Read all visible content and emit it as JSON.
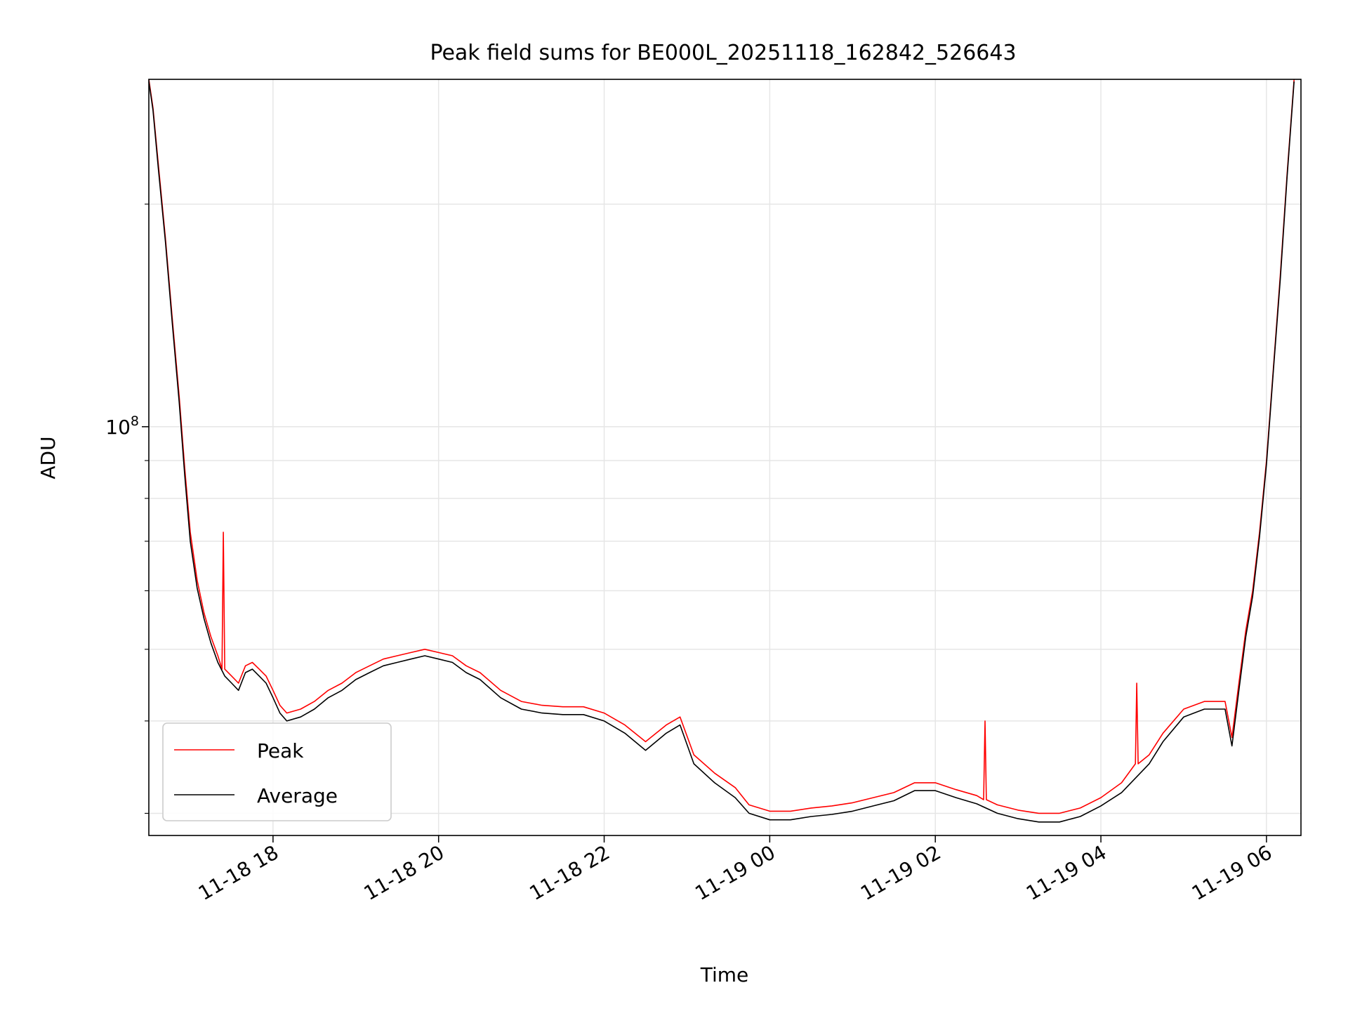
{
  "chart_data": {
    "type": "line",
    "title": "Peak field sums for BE000L_20251118_162842_526643",
    "xlabel": "Time",
    "ylabel": "ADU",
    "yscale": "log",
    "ylim": [
      28000000,
      295000000
    ],
    "xlim": [
      "2025-11-18 16:30",
      "2025-11-19 06:25"
    ],
    "x_ticks": [
      "11-18 18",
      "11-18 20",
      "11-18 22",
      "11-19 00",
      "11-19 02",
      "11-19 04",
      "11-19 06"
    ],
    "y_tick_labels": [
      {
        "base": "10",
        "exponent": "8"
      }
    ],
    "grid": true,
    "legend_position": "lower-left",
    "colors": {
      "peak": "#ff0000",
      "average": "#000000"
    },
    "series": [
      {
        "name": "Peak",
        "x": [
          "2025-11-18 16:30",
          "2025-11-18 16:33",
          "2025-11-18 16:37",
          "2025-11-18 16:42",
          "2025-11-18 16:47",
          "2025-11-18 16:52",
          "2025-11-18 16:56",
          "2025-11-18 17:00",
          "2025-11-18 17:05",
          "2025-11-18 17:10",
          "2025-11-18 17:15",
          "2025-11-18 17:20",
          "2025-11-18 17:23",
          "2025-11-18 17:24",
          "2025-11-18 17:25",
          "2025-11-18 17:30",
          "2025-11-18 17:35",
          "2025-11-18 17:40",
          "2025-11-18 17:45",
          "2025-11-18 17:50",
          "2025-11-18 17:55",
          "2025-11-18 18:00",
          "2025-11-18 18:05",
          "2025-11-18 18:10",
          "2025-11-18 18:20",
          "2025-11-18 18:30",
          "2025-11-18 18:40",
          "2025-11-18 18:50",
          "2025-11-18 19:00",
          "2025-11-18 19:10",
          "2025-11-18 19:20",
          "2025-11-18 19:30",
          "2025-11-18 19:40",
          "2025-11-18 19:50",
          "2025-11-18 20:00",
          "2025-11-18 20:10",
          "2025-11-18 20:20",
          "2025-11-18 20:30",
          "2025-11-18 20:45",
          "2025-11-18 21:00",
          "2025-11-18 21:15",
          "2025-11-18 21:30",
          "2025-11-18 21:45",
          "2025-11-18 22:00",
          "2025-11-18 22:15",
          "2025-11-18 22:30",
          "2025-11-18 22:45",
          "2025-11-18 22:55",
          "2025-11-18 23:05",
          "2025-11-18 23:20",
          "2025-11-18 23:35",
          "2025-11-18 23:45",
          "2025-11-19 00:00",
          "2025-11-19 00:15",
          "2025-11-19 00:30",
          "2025-11-19 00:45",
          "2025-11-19 01:00",
          "2025-11-19 01:15",
          "2025-11-19 01:30",
          "2025-11-19 01:45",
          "2025-11-19 02:00",
          "2025-11-19 02:15",
          "2025-11-19 02:30",
          "2025-11-19 02:35",
          "2025-11-19 02:36",
          "2025-11-19 02:37",
          "2025-11-19 02:45",
          "2025-11-19 03:00",
          "2025-11-19 03:15",
          "2025-11-19 03:30",
          "2025-11-19 03:45",
          "2025-11-19 04:00",
          "2025-11-19 04:15",
          "2025-11-19 04:25",
          "2025-11-19 04:26",
          "2025-11-19 04:27",
          "2025-11-19 04:35",
          "2025-11-19 04:45",
          "2025-11-19 05:00",
          "2025-11-19 05:15",
          "2025-11-19 05:30",
          "2025-11-19 05:35",
          "2025-11-19 05:40",
          "2025-11-19 05:45",
          "2025-11-19 05:50",
          "2025-11-19 05:55",
          "2025-11-19 06:00",
          "2025-11-19 06:05",
          "2025-11-19 06:10",
          "2025-11-19 06:15",
          "2025-11-19 06:20"
        ],
        "values": [
          295000000,
          270000000,
          225000000,
          180000000,
          140000000,
          110000000,
          88000000,
          72000000,
          62000000,
          56000000,
          52000000,
          49000000,
          47000000,
          72000000,
          47000000,
          46000000,
          45000000,
          47500000,
          48000000,
          47000000,
          46000000,
          44000000,
          42000000,
          41000000,
          41500000,
          42500000,
          44000000,
          45000000,
          46500000,
          47500000,
          48500000,
          49000000,
          49500000,
          50000000,
          49500000,
          49000000,
          47500000,
          46500000,
          44000000,
          42500000,
          42000000,
          41800000,
          41800000,
          41000000,
          39500000,
          37500000,
          39500000,
          40500000,
          36000000,
          34000000,
          32500000,
          30800000,
          30200000,
          30200000,
          30500000,
          30700000,
          31000000,
          31500000,
          32000000,
          33000000,
          33000000,
          32300000,
          31700000,
          31300000,
          40000000,
          31300000,
          30800000,
          30300000,
          30000000,
          30000000,
          30500000,
          31500000,
          33000000,
          35000000,
          45000000,
          35000000,
          36000000,
          38500000,
          41500000,
          42500000,
          42500000,
          38000000,
          45000000,
          53000000,
          60000000,
          72000000,
          90000000,
          120000000,
          160000000,
          220000000,
          295000000
        ]
      },
      {
        "name": "Average",
        "x": [
          "2025-11-18 16:30",
          "2025-11-18 16:33",
          "2025-11-18 16:37",
          "2025-11-18 16:42",
          "2025-11-18 16:47",
          "2025-11-18 16:52",
          "2025-11-18 16:56",
          "2025-11-18 17:00",
          "2025-11-18 17:05",
          "2025-11-18 17:10",
          "2025-11-18 17:15",
          "2025-11-18 17:20",
          "2025-11-18 17:25",
          "2025-11-18 17:30",
          "2025-11-18 17:35",
          "2025-11-18 17:40",
          "2025-11-18 17:45",
          "2025-11-18 17:50",
          "2025-11-18 17:55",
          "2025-11-18 18:00",
          "2025-11-18 18:05",
          "2025-11-18 18:10",
          "2025-11-18 18:20",
          "2025-11-18 18:30",
          "2025-11-18 18:40",
          "2025-11-18 18:50",
          "2025-11-18 19:00",
          "2025-11-18 19:10",
          "2025-11-18 19:20",
          "2025-11-18 19:30",
          "2025-11-18 19:40",
          "2025-11-18 19:50",
          "2025-11-18 20:00",
          "2025-11-18 20:10",
          "2025-11-18 20:20",
          "2025-11-18 20:30",
          "2025-11-18 20:45",
          "2025-11-18 21:00",
          "2025-11-18 21:15",
          "2025-11-18 21:30",
          "2025-11-18 21:45",
          "2025-11-18 22:00",
          "2025-11-18 22:15",
          "2025-11-18 22:30",
          "2025-11-18 22:45",
          "2025-11-18 22:55",
          "2025-11-18 23:05",
          "2025-11-18 23:20",
          "2025-11-18 23:35",
          "2025-11-18 23:45",
          "2025-11-19 00:00",
          "2025-11-19 00:15",
          "2025-11-19 00:30",
          "2025-11-19 00:45",
          "2025-11-19 01:00",
          "2025-11-19 01:15",
          "2025-11-19 01:30",
          "2025-11-19 01:45",
          "2025-11-19 02:00",
          "2025-11-19 02:15",
          "2025-11-19 02:30",
          "2025-11-19 02:45",
          "2025-11-19 03:00",
          "2025-11-19 03:15",
          "2025-11-19 03:30",
          "2025-11-19 03:45",
          "2025-11-19 04:00",
          "2025-11-19 04:15",
          "2025-11-19 04:35",
          "2025-11-19 04:45",
          "2025-11-19 05:00",
          "2025-11-19 05:15",
          "2025-11-19 05:30",
          "2025-11-19 05:35",
          "2025-11-19 05:40",
          "2025-11-19 05:45",
          "2025-11-19 05:50",
          "2025-11-19 05:55",
          "2025-11-19 06:00",
          "2025-11-19 06:05",
          "2025-11-19 06:10",
          "2025-11-19 06:15",
          "2025-11-19 06:20"
        ],
        "values": [
          293000000,
          268000000,
          222000000,
          178000000,
          138000000,
          108000000,
          86000000,
          70000000,
          60500000,
          55000000,
          51000000,
          48000000,
          46000000,
          45000000,
          44000000,
          46500000,
          47000000,
          46000000,
          45000000,
          43000000,
          41000000,
          40000000,
          40500000,
          41500000,
          43000000,
          44000000,
          45500000,
          46500000,
          47500000,
          48000000,
          48500000,
          49000000,
          48500000,
          48000000,
          46500000,
          45500000,
          43000000,
          41500000,
          41000000,
          40800000,
          40800000,
          40000000,
          38500000,
          36500000,
          38500000,
          39500000,
          35000000,
          33000000,
          31500000,
          30000000,
          29400000,
          29400000,
          29700000,
          29900000,
          30200000,
          30700000,
          31200000,
          32200000,
          32200000,
          31500000,
          30900000,
          30000000,
          29500000,
          29200000,
          29200000,
          29700000,
          30700000,
          32000000,
          35000000,
          37500000,
          40500000,
          41500000,
          41500000,
          37000000,
          44000000,
          52000000,
          59000000,
          71000000,
          89000000,
          119000000,
          158000000,
          218000000,
          293000000
        ]
      }
    ]
  }
}
